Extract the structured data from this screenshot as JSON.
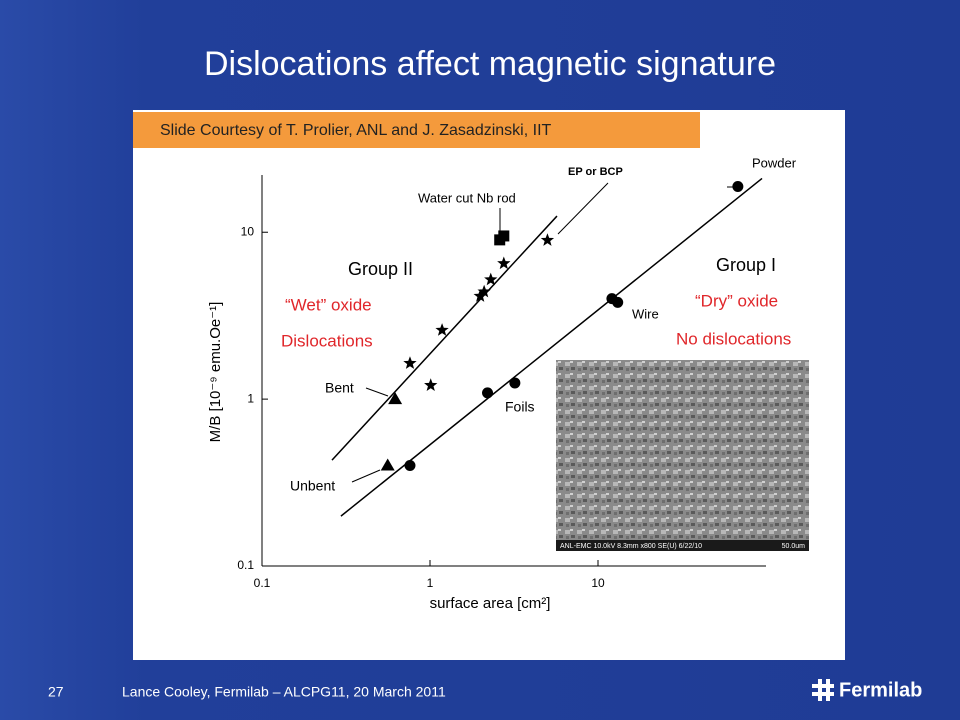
{
  "slide": {
    "title": "Dislocations affect magnetic signature",
    "banner": "Slide Courtesy of T. Prolier, ANL and J. Zasadzinski, IIT",
    "page_number": "27",
    "footer": "Lance Cooley, Fermilab – ALCPG11, 20 March 2011",
    "logo": "Fermilab"
  },
  "chart_data": {
    "type": "scatter",
    "x_label": "surface area [cm²]",
    "y_label": "M/B [10⁻⁹ emu.Oe⁻¹]",
    "xscale": "log",
    "yscale": "log",
    "xlim": [
      0.1,
      100
    ],
    "ylim": [
      0.1,
      20
    ],
    "xticks": [
      0.1,
      1,
      10
    ],
    "yticks": [
      0.1,
      1,
      10
    ],
    "color": "#000000",
    "series": [
      {
        "marker": "star",
        "x": [
          0.76,
          1.01,
          1.18,
          1.99,
          2.1,
          2.3,
          2.75,
          5.0
        ],
        "y": [
          1.64,
          1.21,
          2.59,
          4.14,
          4.4,
          5.2,
          6.5,
          8.96
        ]
      },
      {
        "marker": "square",
        "x": [
          2.6,
          2.75
        ],
        "y": [
          9.0,
          9.5
        ]
      },
      {
        "marker": "triangle",
        "x": [
          0.62,
          0.56
        ],
        "y": [
          1.0,
          0.4
        ]
      },
      {
        "marker": "circle",
        "x": [
          0.76,
          2.2,
          3.2,
          12.1,
          13.1,
          68
        ],
        "y": [
          0.4,
          1.09,
          1.25,
          4.0,
          3.8,
          18.8
        ]
      }
    ],
    "fits": [
      {
        "x": [
          0.261,
          5.7
        ],
        "y": [
          0.431,
          12.5
        ]
      },
      {
        "x": [
          0.295,
          94.7
        ],
        "y": [
          0.199,
          21.0
        ]
      }
    ],
    "annotations": [
      "Powder",
      "EP or BCP",
      "Water cut Nb rod",
      "Group II",
      "Group I",
      "“Wet” oxide",
      "Dislocations",
      "“Dry” oxide",
      "No dislocations",
      "Wire",
      "Bent",
      "Foils",
      "Unbent"
    ],
    "inset_caption": "ANL-EMC 10.0kV 8.3mm x800 SE(U) 6/22/10",
    "inset_scale": "50.0um"
  }
}
